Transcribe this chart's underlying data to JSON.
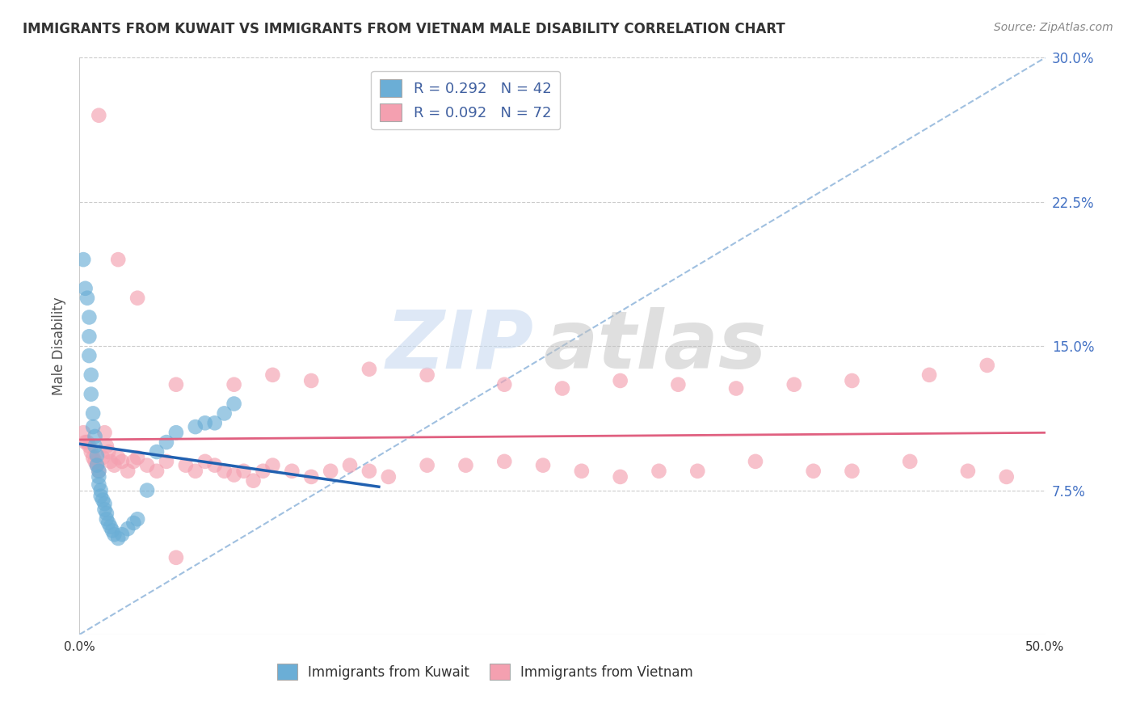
{
  "title": "IMMIGRANTS FROM KUWAIT VS IMMIGRANTS FROM VIETNAM MALE DISABILITY CORRELATION CHART",
  "source": "Source: ZipAtlas.com",
  "ylabel": "Male Disability",
  "xlim": [
    0.0,
    0.5
  ],
  "ylim": [
    0.0,
    0.3
  ],
  "yticks": [
    0.075,
    0.15,
    0.225,
    0.3
  ],
  "ytick_labels": [
    "7.5%",
    "15.0%",
    "22.5%",
    "30.0%"
  ],
  "kuwait_R": 0.292,
  "kuwait_N": 42,
  "vietnam_R": 0.092,
  "vietnam_N": 72,
  "kuwait_color": "#6baed6",
  "kuwait_alpha": 0.65,
  "vietnam_color": "#f4a0b0",
  "vietnam_alpha": 0.65,
  "kuwait_line_color": "#2060b0",
  "vietnam_line_color": "#e06080",
  "dashed_line_color": "#a0c0e0",
  "background_color": "#ffffff",
  "legend_kuwait_label": "R = 0.292   N = 42",
  "legend_vietnam_label": "R = 0.092   N = 72",
  "legend_bottom_kuwait": "Immigrants from Kuwait",
  "legend_bottom_vietnam": "Immigrants from Vietnam",
  "grid_color": "#cccccc",
  "right_tick_color": "#4472c4",
  "kuwait_x": [
    0.002,
    0.003,
    0.004,
    0.005,
    0.005,
    0.005,
    0.006,
    0.006,
    0.007,
    0.007,
    0.008,
    0.008,
    0.009,
    0.009,
    0.01,
    0.01,
    0.01,
    0.011,
    0.011,
    0.012,
    0.013,
    0.013,
    0.014,
    0.014,
    0.015,
    0.016,
    0.017,
    0.018,
    0.02,
    0.022,
    0.025,
    0.028,
    0.03,
    0.035,
    0.04,
    0.045,
    0.05,
    0.06,
    0.065,
    0.07,
    0.075,
    0.08
  ],
  "kuwait_y": [
    0.195,
    0.18,
    0.175,
    0.165,
    0.155,
    0.145,
    0.135,
    0.125,
    0.115,
    0.108,
    0.103,
    0.098,
    0.093,
    0.088,
    0.085,
    0.082,
    0.078,
    0.075,
    0.072,
    0.07,
    0.068,
    0.065,
    0.063,
    0.06,
    0.058,
    0.056,
    0.054,
    0.052,
    0.05,
    0.052,
    0.055,
    0.058,
    0.06,
    0.075,
    0.095,
    0.1,
    0.105,
    0.108,
    0.11,
    0.11,
    0.115,
    0.12
  ],
  "vietnam_x": [
    0.002,
    0.003,
    0.004,
    0.005,
    0.006,
    0.007,
    0.008,
    0.009,
    0.01,
    0.012,
    0.013,
    0.014,
    0.015,
    0.016,
    0.018,
    0.02,
    0.022,
    0.025,
    0.028,
    0.03,
    0.035,
    0.04,
    0.045,
    0.05,
    0.055,
    0.06,
    0.065,
    0.07,
    0.075,
    0.08,
    0.085,
    0.09,
    0.095,
    0.1,
    0.11,
    0.12,
    0.13,
    0.14,
    0.15,
    0.16,
    0.18,
    0.2,
    0.22,
    0.24,
    0.26,
    0.28,
    0.3,
    0.32,
    0.35,
    0.38,
    0.4,
    0.43,
    0.46,
    0.48,
    0.05,
    0.08,
    0.1,
    0.12,
    0.15,
    0.18,
    0.22,
    0.25,
    0.28,
    0.31,
    0.34,
    0.37,
    0.4,
    0.44,
    0.47,
    0.01,
    0.02,
    0.03
  ],
  "vietnam_y": [
    0.105,
    0.1,
    0.1,
    0.098,
    0.095,
    0.092,
    0.09,
    0.088,
    0.085,
    0.092,
    0.105,
    0.098,
    0.095,
    0.09,
    0.088,
    0.092,
    0.09,
    0.085,
    0.09,
    0.092,
    0.088,
    0.085,
    0.09,
    0.04,
    0.088,
    0.085,
    0.09,
    0.088,
    0.085,
    0.083,
    0.085,
    0.08,
    0.085,
    0.088,
    0.085,
    0.082,
    0.085,
    0.088,
    0.085,
    0.082,
    0.088,
    0.088,
    0.09,
    0.088,
    0.085,
    0.082,
    0.085,
    0.085,
    0.09,
    0.085,
    0.085,
    0.09,
    0.085,
    0.082,
    0.13,
    0.13,
    0.135,
    0.132,
    0.138,
    0.135,
    0.13,
    0.128,
    0.132,
    0.13,
    0.128,
    0.13,
    0.132,
    0.135,
    0.14,
    0.27,
    0.195,
    0.175
  ]
}
